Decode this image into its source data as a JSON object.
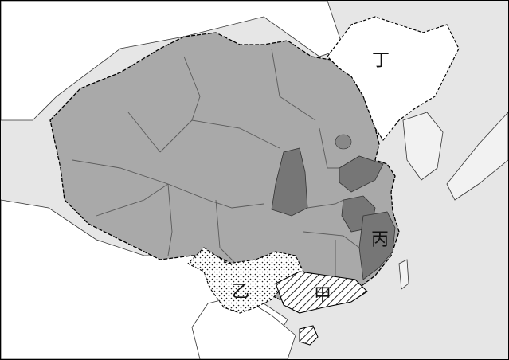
{
  "map": {
    "labels": {
      "jia": "甲",
      "yi": "乙",
      "bing": "丙",
      "ding": "丁"
    },
    "colors": {
      "sea": "#e6e6e6",
      "foreign_land": "#ffffff",
      "main_territory": "#a9a9a9",
      "dark_provinces": "#767676",
      "ding_region": "#ffffff",
      "province_lines": "#5a5a5a",
      "border_dashed": "#000000"
    }
  }
}
